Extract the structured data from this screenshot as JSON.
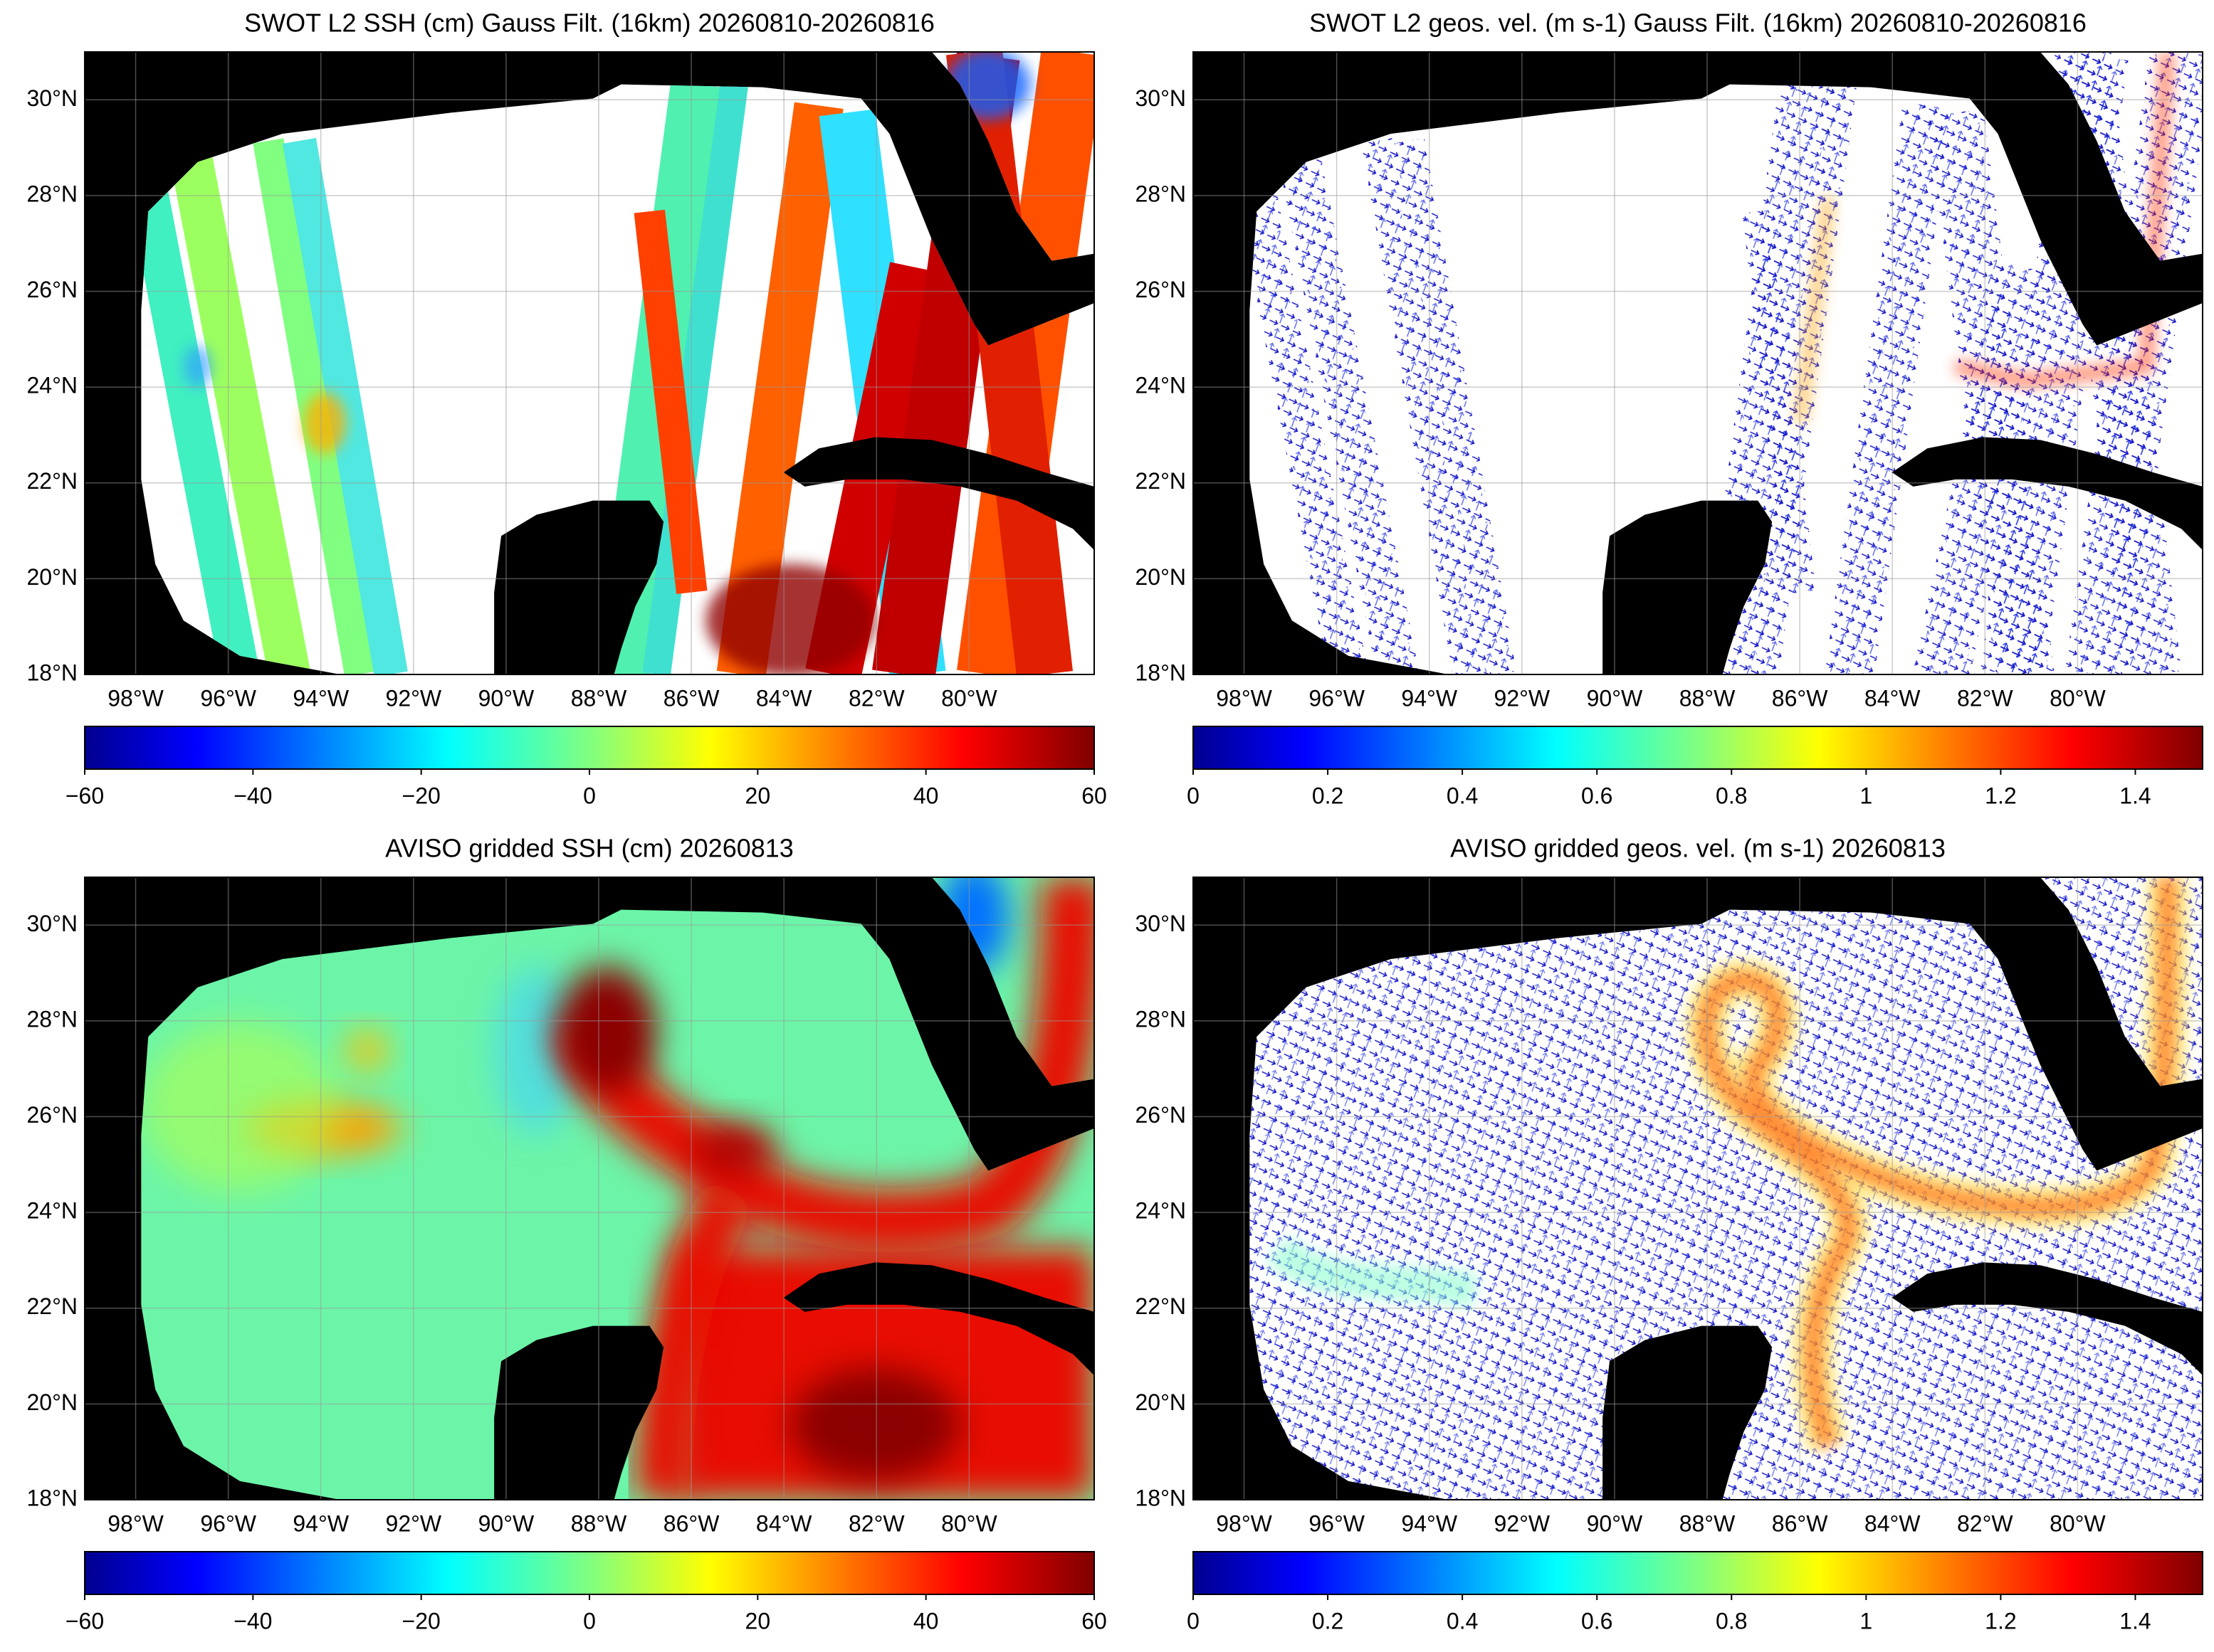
{
  "chart_data": [
    {
      "type": "map",
      "title": "SWOT L2 SSH (cm) Gauss Filt. (16km) 20260810-20260816",
      "xlim": [
        -99.1,
        -77.3
      ],
      "ylim": [
        18,
        31
      ],
      "xticks": [
        {
          "value": -98,
          "label": "98°W"
        },
        {
          "value": -96,
          "label": "96°W"
        },
        {
          "value": -94,
          "label": "94°W"
        },
        {
          "value": -92,
          "label": "92°W"
        },
        {
          "value": -90,
          "label": "90°W"
        },
        {
          "value": -88,
          "label": "88°W"
        },
        {
          "value": -86,
          "label": "86°W"
        },
        {
          "value": -84,
          "label": "84°W"
        },
        {
          "value": -82,
          "label": "82°W"
        },
        {
          "value": -80,
          "label": "80°W"
        }
      ],
      "yticks": [
        {
          "value": 18,
          "label": "18°N"
        },
        {
          "value": 20,
          "label": "20°N"
        },
        {
          "value": 22,
          "label": "22°N"
        },
        {
          "value": 24,
          "label": "24°N"
        },
        {
          "value": 26,
          "label": "26°N"
        },
        {
          "value": 28,
          "label": "28°N"
        },
        {
          "value": 30,
          "label": "30°N"
        }
      ],
      "grid": true,
      "colorbar": {
        "colormap": "jet",
        "lim": [
          -60,
          60
        ],
        "ticks": [
          {
            "value": -60,
            "label": "−60"
          },
          {
            "value": -40,
            "label": "−40"
          },
          {
            "value": -20,
            "label": "−20"
          },
          0,
          20,
          40,
          60
        ]
      }
    },
    {
      "type": "quiver",
      "title": "SWOT L2 geos. vel. (m s-1) Gauss Filt. (16km) 20260810-20260816",
      "xlim": [
        -99.1,
        -77.3
      ],
      "ylim": [
        18,
        31
      ],
      "xticks": [
        {
          "value": -98,
          "label": "98°W"
        },
        {
          "value": -96,
          "label": "96°W"
        },
        {
          "value": -94,
          "label": "94°W"
        },
        {
          "value": -92,
          "label": "92°W"
        },
        {
          "value": -90,
          "label": "90°W"
        },
        {
          "value": -88,
          "label": "88°W"
        },
        {
          "value": -86,
          "label": "86°W"
        },
        {
          "value": -84,
          "label": "84°W"
        },
        {
          "value": -82,
          "label": "82°W"
        },
        {
          "value": -80,
          "label": "80°W"
        }
      ],
      "yticks": [
        {
          "value": 18,
          "label": "18°N"
        },
        {
          "value": 20,
          "label": "20°N"
        },
        {
          "value": 22,
          "label": "22°N"
        },
        {
          "value": 24,
          "label": "24°N"
        },
        {
          "value": 26,
          "label": "26°N"
        },
        {
          "value": 28,
          "label": "28°N"
        },
        {
          "value": 30,
          "label": "30°N"
        }
      ],
      "grid": true,
      "colorbar": {
        "colormap": "jet",
        "lim": [
          0,
          1.5
        ],
        "ticks": [
          0,
          0.2,
          0.4,
          0.6,
          0.8,
          1,
          1.2,
          1.4
        ]
      }
    },
    {
      "type": "map",
      "title": "AVISO gridded SSH (cm) 20260813",
      "xlim": [
        -99.1,
        -77.3
      ],
      "ylim": [
        18,
        31
      ],
      "xticks": [
        {
          "value": -98,
          "label": "98°W"
        },
        {
          "value": -96,
          "label": "96°W"
        },
        {
          "value": -94,
          "label": "94°W"
        },
        {
          "value": -92,
          "label": "92°W"
        },
        {
          "value": -90,
          "label": "90°W"
        },
        {
          "value": -88,
          "label": "88°W"
        },
        {
          "value": -86,
          "label": "86°W"
        },
        {
          "value": -84,
          "label": "84°W"
        },
        {
          "value": -82,
          "label": "82°W"
        },
        {
          "value": -80,
          "label": "80°W"
        }
      ],
      "yticks": [
        {
          "value": 18,
          "label": "18°N"
        },
        {
          "value": 20,
          "label": "20°N"
        },
        {
          "value": 22,
          "label": "22°N"
        },
        {
          "value": 24,
          "label": "24°N"
        },
        {
          "value": 26,
          "label": "26°N"
        },
        {
          "value": 28,
          "label": "28°N"
        },
        {
          "value": 30,
          "label": "30°N"
        }
      ],
      "grid": true,
      "colorbar": {
        "colormap": "jet",
        "lim": [
          -60,
          60
        ],
        "ticks": [
          {
            "value": -60,
            "label": "−60"
          },
          {
            "value": -40,
            "label": "−40"
          },
          {
            "value": -20,
            "label": "−20"
          },
          0,
          20,
          40,
          60
        ]
      }
    },
    {
      "type": "quiver",
      "title": "AVISO gridded geos. vel. (m s-1)  20260813",
      "xlim": [
        -99.1,
        -77.3
      ],
      "ylim": [
        18,
        31
      ],
      "xticks": [
        {
          "value": -98,
          "label": "98°W"
        },
        {
          "value": -96,
          "label": "96°W"
        },
        {
          "value": -94,
          "label": "94°W"
        },
        {
          "value": -92,
          "label": "92°W"
        },
        {
          "value": -90,
          "label": "90°W"
        },
        {
          "value": -88,
          "label": "88°W"
        },
        {
          "value": -86,
          "label": "86°W"
        },
        {
          "value": -84,
          "label": "84°W"
        },
        {
          "value": -82,
          "label": "82°W"
        },
        {
          "value": -80,
          "label": "80°W"
        }
      ],
      "yticks": [
        {
          "value": 18,
          "label": "18°N"
        },
        {
          "value": 20,
          "label": "20°N"
        },
        {
          "value": 22,
          "label": "22°N"
        },
        {
          "value": 24,
          "label": "24°N"
        },
        {
          "value": 26,
          "label": "26°N"
        },
        {
          "value": 28,
          "label": "28°N"
        },
        {
          "value": 30,
          "label": "30°N"
        }
      ],
      "grid": true,
      "colorbar": {
        "colormap": "jet",
        "lim": [
          0,
          1.5
        ],
        "ticks": [
          0,
          0.2,
          0.4,
          0.6,
          0.8,
          1,
          1.2,
          1.4
        ]
      }
    }
  ]
}
